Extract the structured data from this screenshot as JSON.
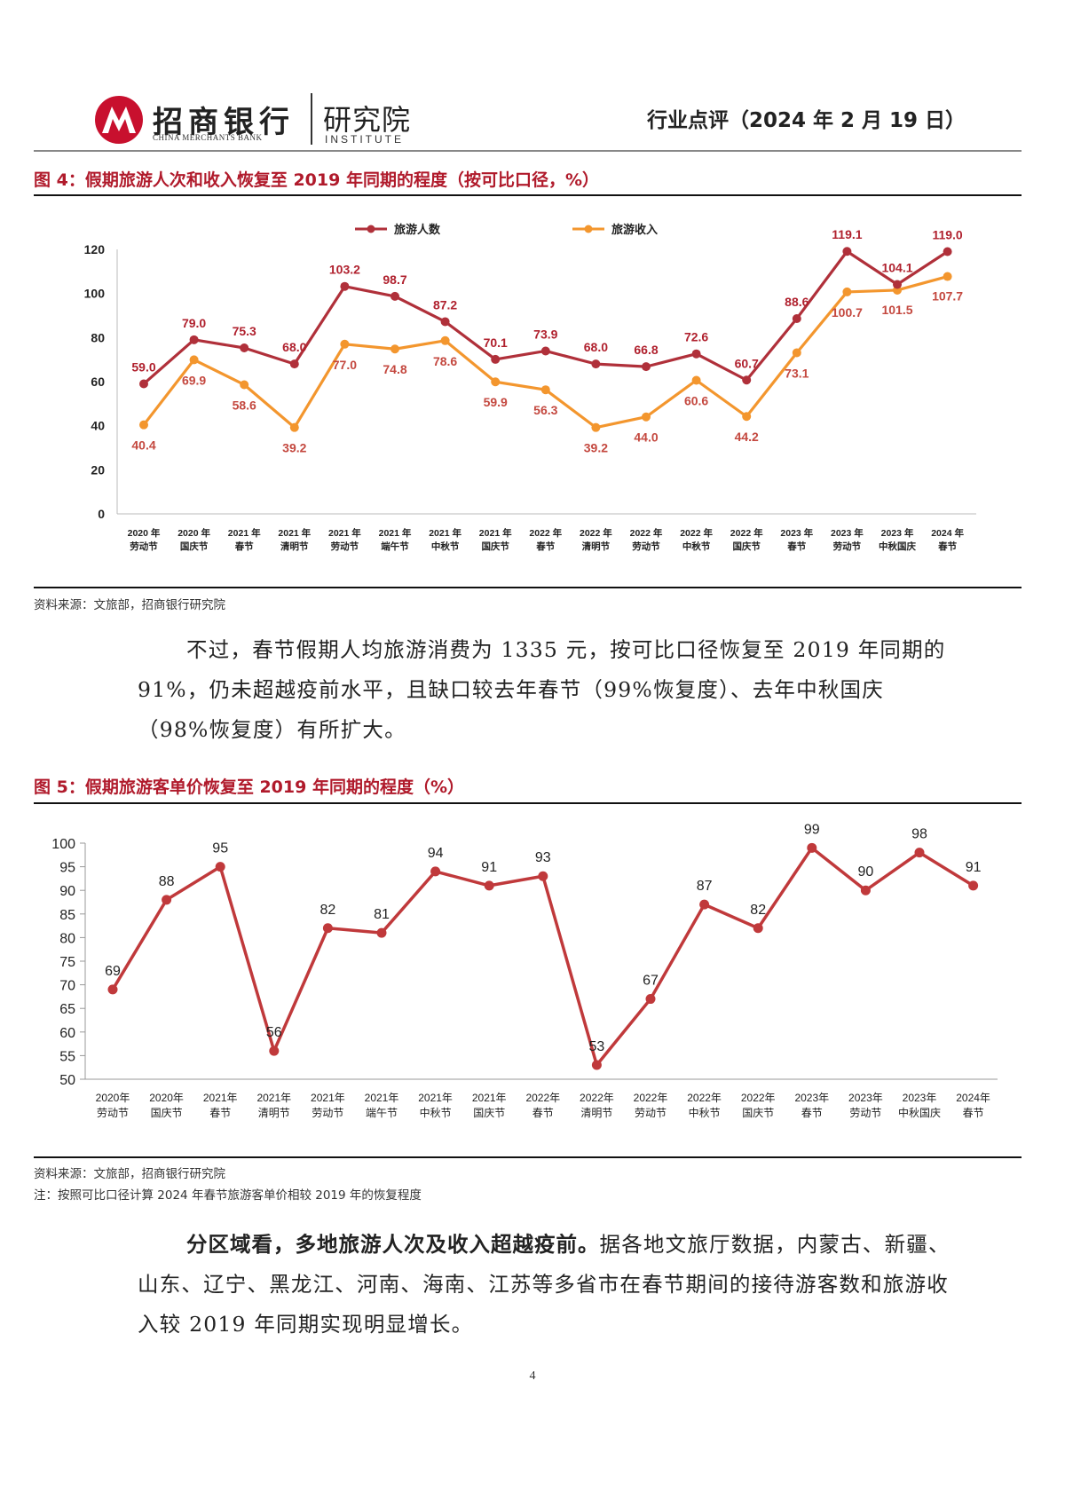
{
  "header": {
    "bank_name_cn": "招商银行",
    "bank_name_en": "CHINA MERCHANTS BANK",
    "institute_cn": "研究院",
    "institute_en": "INSTITUTE",
    "report_type": "行业点评（2024 年 2 月 19 日）"
  },
  "figure4": {
    "title": "图 4：假期旅游人次和收入恢复至 2019 年同期的程度（按可比口径，%）",
    "source": "资料来源：文旅部，招商银行研究院"
  },
  "paragraph1": "不过，春节假期人均旅游消费为 1335 元，按可比口径恢复至 2019 年同期的 91%，仍未超越疫前水平，且缺口较去年春节（99%恢复度）、去年中秋国庆（98%恢复度）有所扩大。",
  "figure5": {
    "title": "图 5：假期旅游客单价恢复至 2019 年同期的程度（%）",
    "source": "资料来源：文旅部，招商银行研究院",
    "note": "注：按照可比口径计算 2024 年春节旅游客单价相较 2019 年的恢复程度"
  },
  "paragraph2_bold": "分区域看，多地旅游人次及收入超越疫前。",
  "paragraph2_rest": "据各地文旅厅数据，内蒙古、新疆、山东、辽宁、黑龙江、河南、海南、江苏等多省市在春节期间的接待游客数和旅游收入较 2019 年同期实现明显增长。",
  "page_number": "4",
  "colors": {
    "title_red": "#b01a2b",
    "series_red": "#b0303a",
    "series_orange": "#f3962e",
    "line5": "#c0393b"
  },
  "chart_data": [
    {
      "type": "line",
      "categories": [
        [
          "2020 年",
          "劳动节"
        ],
        [
          "2020 年",
          "国庆节"
        ],
        [
          "2021 年",
          "春节"
        ],
        [
          "2021 年",
          "清明节"
        ],
        [
          "2021 年",
          "劳动节"
        ],
        [
          "2021 年",
          "端午节"
        ],
        [
          "2021 年",
          "中秋节"
        ],
        [
          "2021 年",
          "国庆节"
        ],
        [
          "2022 年",
          "春节"
        ],
        [
          "2022 年",
          "清明节"
        ],
        [
          "2022 年",
          "劳动节"
        ],
        [
          "2022 年",
          "中秋节"
        ],
        [
          "2022 年",
          "国庆节"
        ],
        [
          "2023 年",
          "春节"
        ],
        [
          "2023 年",
          "劳动节"
        ],
        [
          "2023 年",
          "中秋国庆"
        ],
        [
          "2024 年",
          "春节"
        ]
      ],
      "series": [
        {
          "name": "旅游人数",
          "color": "#b0303a",
          "values": [
            59.0,
            79.0,
            75.3,
            68.0,
            103.2,
            98.7,
            87.2,
            70.1,
            73.9,
            68.0,
            66.8,
            72.6,
            60.7,
            88.6,
            119.1,
            104.1,
            119.0
          ],
          "labels": [
            "59.0",
            "79.0",
            "75.3",
            "68.0",
            "103.2",
            "98.7",
            "87.2",
            "70.1",
            "73.9",
            "68.0",
            "66.8",
            "72.6",
            "60.7",
            "88.6",
            "119.1",
            "104.1",
            "119.0"
          ]
        },
        {
          "name": "旅游收入",
          "color": "#f3962e",
          "values": [
            40.4,
            69.9,
            58.6,
            39.2,
            77.0,
            74.8,
            78.6,
            59.9,
            56.3,
            39.2,
            44.0,
            60.6,
            44.2,
            73.1,
            100.7,
            101.5,
            107.7
          ],
          "labels": [
            "40.4",
            "69.9",
            "58.6",
            "39.2",
            "77.0",
            "74.8",
            "78.6",
            "59.9",
            "56.3",
            "39.2",
            "44.0",
            "60.6",
            "44.2",
            "73.1",
            "100.7",
            "101.5",
            "107.7"
          ]
        }
      ],
      "yticks": [
        "0",
        "20",
        "40",
        "60",
        "80",
        "100",
        "120"
      ],
      "ylim": [
        0,
        120
      ],
      "legend": "top",
      "grid": false
    },
    {
      "type": "line",
      "categories": [
        [
          "2020年",
          "劳动节"
        ],
        [
          "2020年",
          "国庆节"
        ],
        [
          "2021年",
          "春节"
        ],
        [
          "2021年",
          "清明节"
        ],
        [
          "2021年",
          "劳动节"
        ],
        [
          "2021年",
          "端午节"
        ],
        [
          "2021年",
          "中秋节"
        ],
        [
          "2021年",
          "国庆节"
        ],
        [
          "2022年",
          "春节"
        ],
        [
          "2022年",
          "清明节"
        ],
        [
          "2022年",
          "劳动节"
        ],
        [
          "2022年",
          "中秋节"
        ],
        [
          "2022年",
          "国庆节"
        ],
        [
          "2023年",
          "春节"
        ],
        [
          "2023年",
          "劳动节"
        ],
        [
          "2023年",
          "中秋国庆"
        ],
        [
          "2024年",
          "春节"
        ]
      ],
      "series": [
        {
          "color": "#c0393b",
          "values": [
            69,
            88,
            95,
            56,
            82,
            81,
            94,
            91,
            93,
            53,
            67,
            87,
            82,
            99,
            90,
            98,
            91
          ],
          "labels": [
            "69",
            "88",
            "95",
            "56",
            "82",
            "81",
            "94",
            "91",
            "93",
            "53",
            "67",
            "87",
            "82",
            "99",
            "90",
            "98",
            "91"
          ]
        }
      ],
      "yticks": [
        "50",
        "55",
        "60",
        "65",
        "70",
        "75",
        "80",
        "85",
        "90",
        "95",
        "100"
      ],
      "ylim": [
        50,
        100
      ],
      "legend": "none",
      "grid": false
    }
  ]
}
